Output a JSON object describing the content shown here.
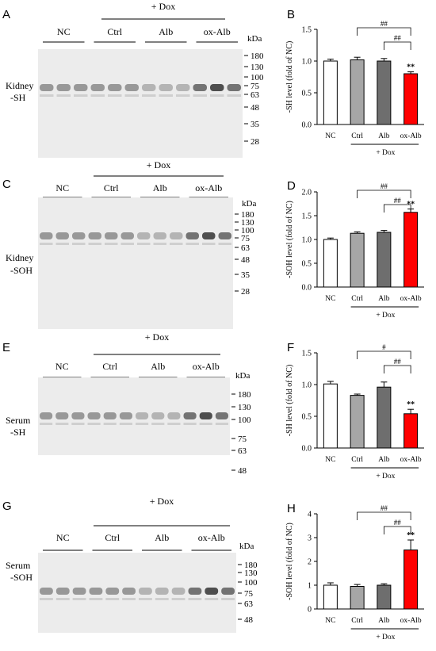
{
  "colors": {
    "nc": "#ffffff",
    "ctrl": "#a6a6a6",
    "alb": "#6e6e6e",
    "oxalb": "#ff0000"
  },
  "blots": [
    {
      "id": "A",
      "letter": "A",
      "dox": "+ Dox",
      "groups": [
        "NC",
        "Ctrl",
        "Alb",
        "ox-Alb"
      ],
      "kda": "kDa",
      "markers": [
        "180",
        "130",
        "100",
        "75",
        "63",
        "48",
        "35",
        "28"
      ],
      "side": [
        "Kidney",
        "-SH"
      ]
    },
    {
      "id": "C",
      "letter": "C",
      "dox": "+ Dox",
      "groups": [
        "NC",
        "Ctrl",
        "Alb",
        "ox-Alb"
      ],
      "kda": "kDa",
      "markers": [
        "180",
        "130",
        "100",
        "75",
        "63",
        "48",
        "35",
        "28"
      ],
      "side": [
        "Kidney",
        "-SOH"
      ]
    },
    {
      "id": "E",
      "letter": "E",
      "dox": "+ Dox",
      "groups": [
        "NC",
        "Ctrl",
        "Alb",
        "ox-Alb"
      ],
      "kda": "kDa",
      "markers": [
        "180",
        "130",
        "100",
        "75",
        "63",
        "48"
      ],
      "side": [
        "Serum",
        "-SH"
      ]
    },
    {
      "id": "G",
      "letter": "G",
      "dox": "+ Dox",
      "groups": [
        "NC",
        "Ctrl",
        "Alb",
        "ox-Alb"
      ],
      "kda": "kDa",
      "markers": [
        "180",
        "130",
        "100",
        "75",
        "63",
        "48"
      ],
      "side": [
        "Serum",
        "-SOH"
      ]
    }
  ],
  "chart_data": [
    {
      "letter": "B",
      "type": "bar",
      "categories": [
        "NC",
        "Ctrl",
        "Alb",
        "ox-Alb"
      ],
      "values": [
        1.0,
        1.02,
        1.0,
        0.8
      ],
      "errors": [
        0.03,
        0.04,
        0.04,
        0.03
      ],
      "ylabel": "-SH level (fold of NC)",
      "ylim": [
        0,
        1.5
      ],
      "yticks": [
        "0.0",
        "0.5",
        "1.0",
        "1.5"
      ],
      "group_label": "+ Dox",
      "sig_bar": "**",
      "brackets": [
        "##",
        "##"
      ]
    },
    {
      "letter": "D",
      "type": "bar",
      "categories": [
        "NC",
        "Ctrl",
        "Alb",
        "ox-Alb"
      ],
      "values": [
        1.0,
        1.13,
        1.15,
        1.57
      ],
      "errors": [
        0.03,
        0.03,
        0.04,
        0.07
      ],
      "ylabel": "-SOH level (fold of NC)",
      "ylim": [
        0,
        2.0
      ],
      "yticks": [
        "0.0",
        "0.5",
        "1.0",
        "1.5",
        "2.0"
      ],
      "group_label": "+ Dox",
      "sig_bar": "**",
      "brackets": [
        "##",
        "##"
      ]
    },
    {
      "letter": "F",
      "type": "bar",
      "categories": [
        "NC",
        "Ctrl",
        "Alb",
        "ox-Alb"
      ],
      "values": [
        1.01,
        0.83,
        0.96,
        0.54
      ],
      "errors": [
        0.04,
        0.02,
        0.08,
        0.07
      ],
      "ylabel": "-SH level (fold of NC)",
      "ylim": [
        0,
        1.5
      ],
      "yticks": [
        "0.0",
        "0.5",
        "1.0",
        "1.5"
      ],
      "group_label": "+ Dox",
      "sig_bar": "**",
      "brackets": [
        "#",
        "##"
      ]
    },
    {
      "letter": "H",
      "type": "bar",
      "categories": [
        "NC",
        "Ctrl",
        "Alb",
        "ox-Alb"
      ],
      "values": [
        1.0,
        0.95,
        1.0,
        2.48
      ],
      "errors": [
        0.1,
        0.08,
        0.06,
        0.42
      ],
      "ylabel": "-SOH level (fold of NC)",
      "ylim": [
        0,
        4
      ],
      "yticks": [
        "0",
        "1",
        "2",
        "3",
        "4"
      ],
      "group_label": "+ Dox",
      "sig_bar": "**",
      "brackets": [
        "##",
        "##"
      ]
    }
  ]
}
